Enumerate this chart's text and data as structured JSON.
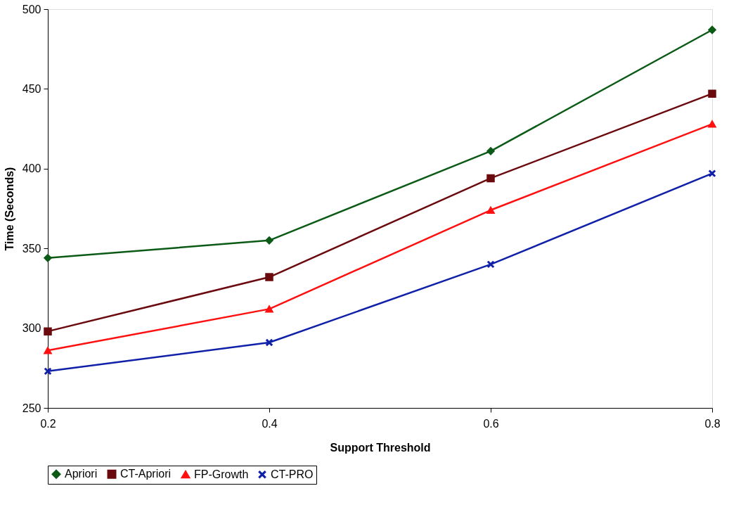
{
  "chart_data": {
    "type": "line",
    "xlabel": "Support Threshold",
    "ylabel": "Time (Seconds)",
    "x": [
      0.2,
      0.4,
      0.6,
      0.8
    ],
    "series": [
      {
        "name": "Apriori",
        "color": "#0b5a16",
        "marker": "diamond",
        "values": [
          344,
          355,
          411,
          487
        ]
      },
      {
        "name": "CT-Apriori",
        "color": "#6b0a0e",
        "marker": "square",
        "values": [
          298,
          332,
          394,
          447
        ]
      },
      {
        "name": "FP-Growth",
        "color": "#ff1010",
        "marker": "triangle",
        "values": [
          286,
          312,
          374,
          428
        ]
      },
      {
        "name": "CT-PRO",
        "color": "#1020a8",
        "marker": "cross",
        "values": [
          273,
          291,
          340,
          397
        ]
      }
    ],
    "xlim": [
      0.2,
      0.8
    ],
    "xticks": [
      0.2,
      0.4,
      0.6,
      0.8
    ],
    "ylim": [
      250,
      500
    ],
    "yticks": [
      250,
      300,
      350,
      400,
      450,
      500
    ],
    "grid": false,
    "legend": "bottom",
    "line_style": "solid"
  }
}
